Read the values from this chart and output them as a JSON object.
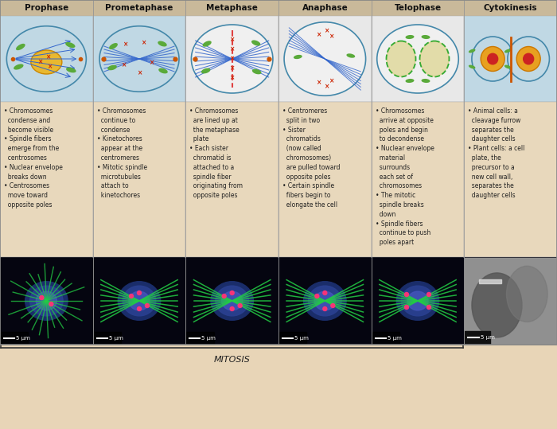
{
  "background_color": "#e8d5b7",
  "header_bg": "#c8b590",
  "title_color": "#000000",
  "text_color": "#222222",
  "border_color": "#999999",
  "mitosis_label": "MITOSIS",
  "columns": [
    {
      "title": "Prophase",
      "bullets": [
        "• Chromosomes\n  condense and\n  become visible",
        "• Spindle fibers\n  emerge from the\n  centrosomes",
        "• Nuclear envelope\n  breaks down",
        "• Centrosomes\n  move toward\n  opposite poles"
      ]
    },
    {
      "title": "Prometaphase",
      "bullets": [
        "• Chromosomes\n  continue to\n  condense",
        "• Kinetochores\n  appear at the\n  centromeres",
        "• Mitotic spindle\n  microtubules\n  attach to\n  kinetochores"
      ]
    },
    {
      "title": "Metaphase",
      "bullets": [
        "• Chromosomes\n  are lined up at\n  the metaphase\n  plate",
        "• Each sister\n  chromatid is\n  attached to a\n  spindle fiber\n  originating from\n  opposite poles"
      ]
    },
    {
      "title": "Anaphase",
      "bullets": [
        "• Centromeres\n  split in two",
        "• Sister\n  chromatids\n  (now called\n  chromosomes)\n  are pulled toward\n  opposite poles",
        "• Certain spindle\n  fibers begin to\n  elongate the cell"
      ]
    },
    {
      "title": "Telophase",
      "bullets": [
        "• Chromosomes\n  arrive at opposite\n  poles and begin\n  to decondense",
        "• Nuclear envelope\n  material\n  surrounds\n  each set of\n  chromosomes",
        "• The mitotic\n  spindle breaks\n  down",
        "• Spindle fibers\n  continue to push\n  poles apart"
      ]
    },
    {
      "title": "Cytokinesis",
      "bullets": [
        "• Animal cells: a\n  cleavage furrow\n  separates the\n  daughter cells",
        "• Plant cells: a cell\n  plate, the\n  precursor to a\n  new cell wall,\n  separates the\n  daughter cells"
      ]
    }
  ],
  "diagram_bg_colors": [
    "#c0d8e4",
    "#c0d8e4",
    "#e8e8e8",
    "#e8e8e8",
    "#e8e8e8",
    "#c0d8e4"
  ],
  "scale_bar_text": "5 μm",
  "figsize": [
    7.0,
    5.39
  ],
  "dpi": 100
}
